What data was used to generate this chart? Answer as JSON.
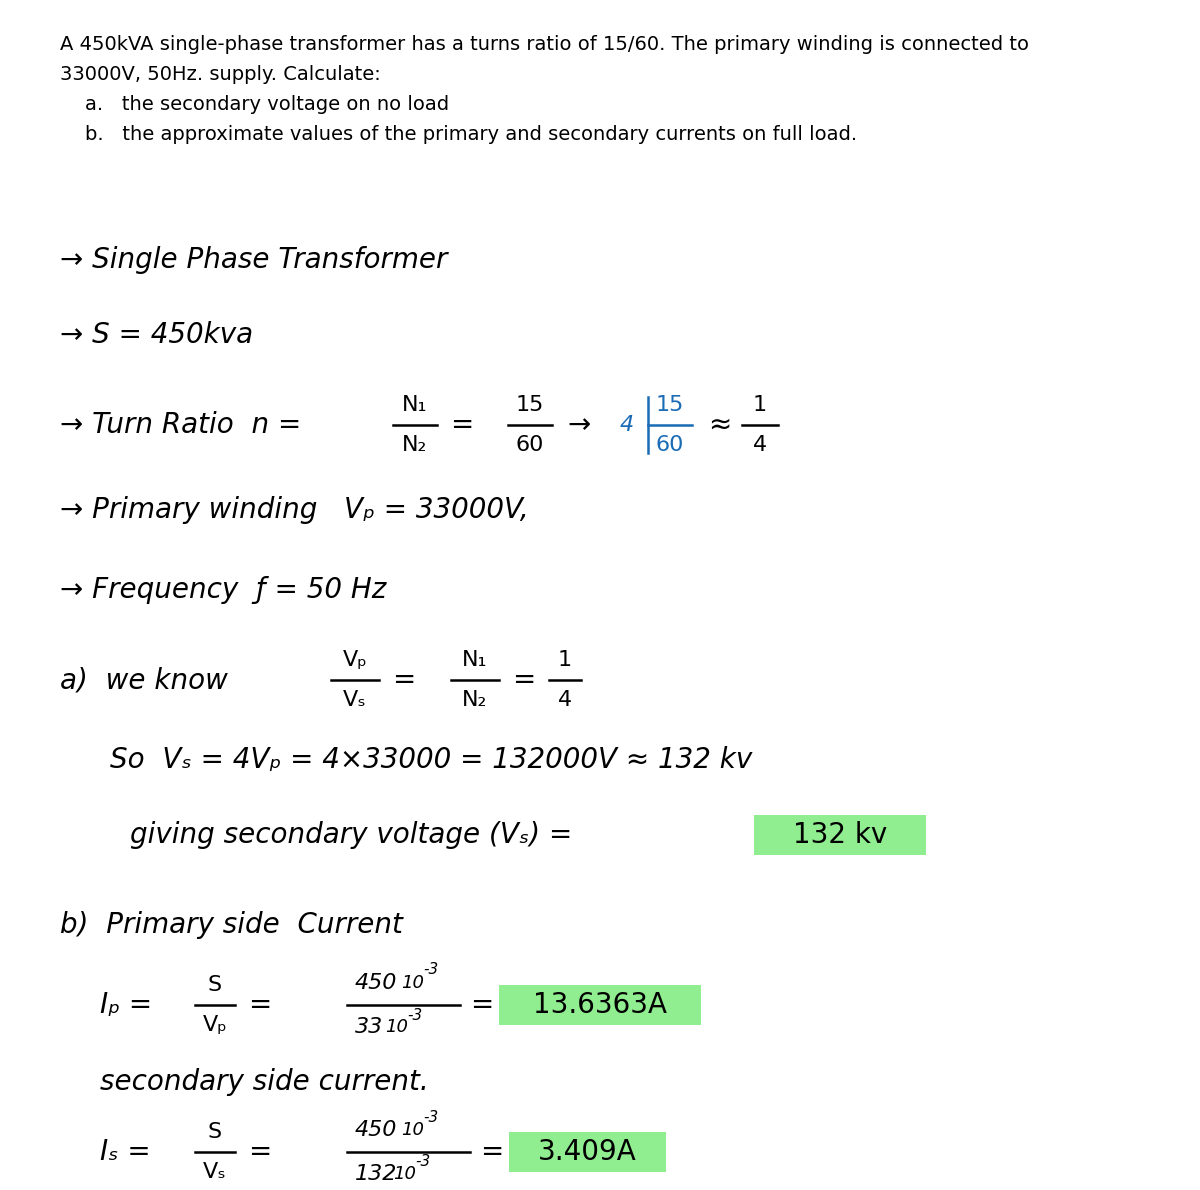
{
  "bg_color": "#ffffff",
  "text_color": "#000000",
  "blue_color": "#1a6bb5",
  "highlight_color": "#90EE90",
  "problem_lines": [
    "A 450kVA single-phase transformer has a turns ratio of 15/60. The primary winding is connected to",
    "33000V, 50Hz. supply. Calculate:",
    "    a.   the secondary voltage on no load",
    "    b.   the approximate values of the primary and secondary currents on full load."
  ],
  "figsize": [
    12.0,
    11.9
  ],
  "dpi": 100
}
